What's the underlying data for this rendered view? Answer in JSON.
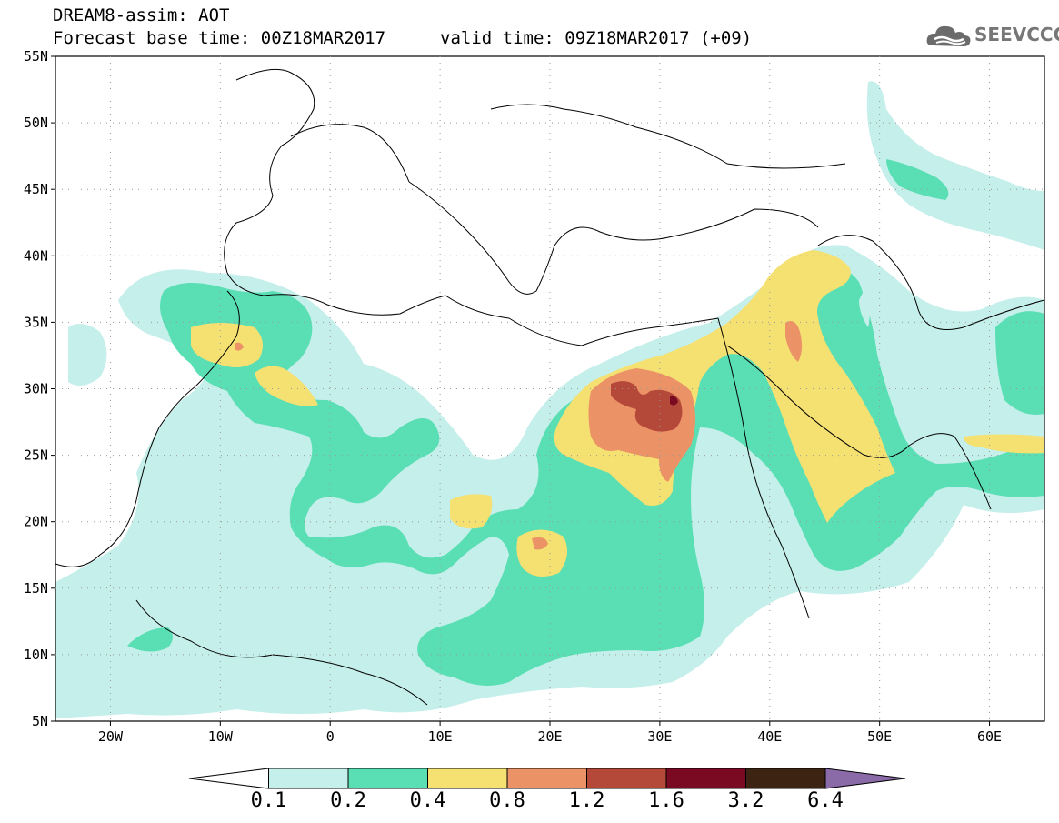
{
  "header": {
    "title": "DREAM8-assim: AOT",
    "base_time": "Forecast base time: 00Z18MAR2017",
    "valid_time": "valid time: 09Z18MAR2017 (+09)"
  },
  "logo": {
    "text": "SEEVCCC",
    "icon": "cloud-logo-icon"
  },
  "map": {
    "lat_ticks": [
      "55N",
      "50N",
      "45N",
      "40N",
      "35N",
      "30N",
      "25N",
      "20N",
      "15N",
      "10N",
      "5N"
    ],
    "lon_ticks": [
      "20W",
      "10W",
      "0",
      "10E",
      "20E",
      "30E",
      "40E",
      "50E",
      "60E"
    ],
    "lat_range": [
      5,
      55
    ],
    "lon_range": [
      -25,
      65
    ]
  },
  "colorbar": {
    "levels": [
      "0.1",
      "0.2",
      "0.4",
      "0.8",
      "1.2",
      "1.6",
      "3.2",
      "6.4"
    ],
    "colors": [
      "#ffffff",
      "#c5efea",
      "#5adfb4",
      "#f5e072",
      "#eb9266",
      "#b44939",
      "#7a0a22",
      "#3d2412",
      "#8b6aa8"
    ]
  }
}
